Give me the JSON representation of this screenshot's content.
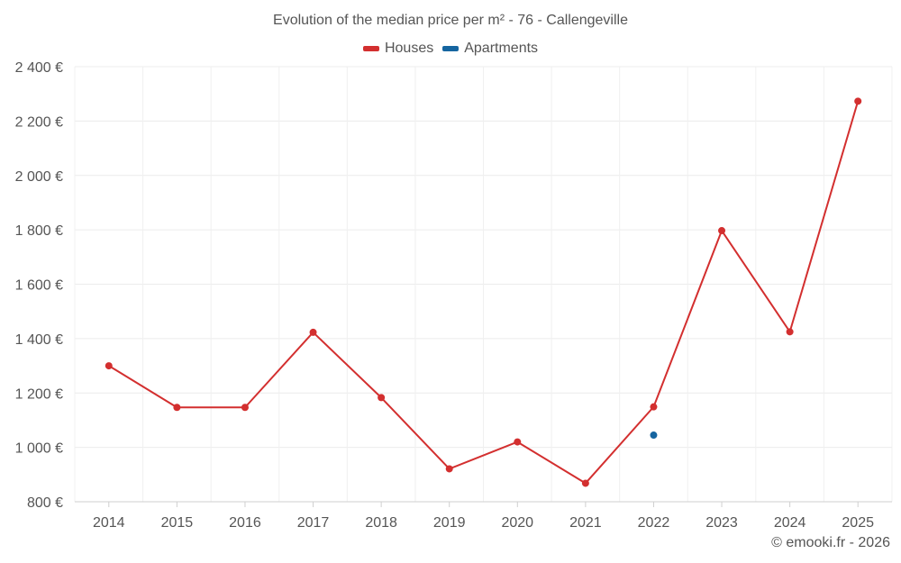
{
  "chart_data": {
    "type": "line",
    "title": "Evolution of the median price per m² - 76 - Callengeville",
    "x": [
      "2014",
      "2015",
      "2016",
      "2017",
      "2018",
      "2019",
      "2020",
      "2021",
      "2022",
      "2023",
      "2024",
      "2025"
    ],
    "series": [
      {
        "name": "Houses",
        "color": "#d32f2f",
        "values": [
          1300,
          1147,
          1147,
          1423,
          1183,
          921,
          1020,
          868,
          1149,
          1797,
          1425,
          2273
        ]
      },
      {
        "name": "Apartments",
        "color": "#1565a0",
        "values": [
          null,
          null,
          null,
          null,
          null,
          null,
          null,
          null,
          1045,
          null,
          null,
          null
        ]
      }
    ],
    "ylim": [
      800,
      2400
    ],
    "yticks": [
      "800 €",
      "1 000 €",
      "1 200 €",
      "1 400 €",
      "1 600 €",
      "1 800 €",
      "2 000 €",
      "2 200 €",
      "2 400 €"
    ],
    "ytick_values": [
      800,
      1000,
      1200,
      1400,
      1600,
      1800,
      2000,
      2200,
      2400
    ],
    "grid": true,
    "legend_position": "top-center"
  },
  "credit": "© emooki.fr - 2026"
}
